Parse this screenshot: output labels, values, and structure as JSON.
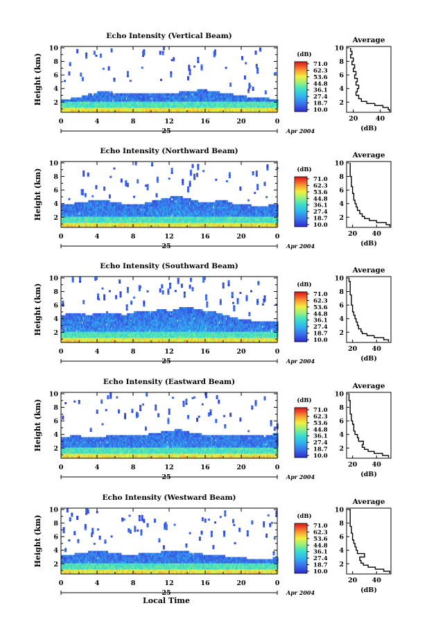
{
  "chart_data": [
    {
      "type": "heatmap",
      "title": "Echo Intensity (Vertical Beam)",
      "ylabel": "Height (km)",
      "x_ticks": [
        "0",
        "4",
        "8",
        "12",
        "16",
        "20",
        "0"
      ],
      "y_ticks": [
        "2",
        "4",
        "6",
        "8",
        "10"
      ],
      "xlim": [
        0,
        24
      ],
      "ylim": [
        0.5,
        10.2
      ],
      "day_label": "25",
      "date_label": "Apr 2004",
      "colorbar": {
        "title": "(dB)",
        "labels": [
          "71.0",
          "62.3",
          "53.6",
          "44.8",
          "36.1",
          "27.4",
          "18.7",
          "10.0"
        ],
        "range": [
          10.0,
          71.0
        ]
      },
      "cloud_top_km": [
        2.2,
        2.4,
        2.6,
        3.0,
        3.3,
        3.4,
        3.2,
        3.0,
        3.0,
        3.0,
        3.1,
        3.1,
        3.2,
        3.3,
        3.4,
        3.6,
        3.6,
        3.4,
        3.2,
        3.0,
        2.8,
        2.6,
        2.5,
        2.4,
        2.3
      ],
      "average_profile": {
        "title": "Average",
        "xlabel": "(dB)",
        "x_ticks": [
          "20",
          "40"
        ],
        "y_ticks": [
          "2",
          "4",
          "6",
          "8",
          "10"
        ],
        "xlim": [
          15,
          48
        ],
        "ylim": [
          0.5,
          10.2
        ],
        "height_km": [
          0.6,
          0.9,
          1.2,
          1.5,
          1.8,
          2.1,
          2.5,
          3.0,
          3.5,
          4.0,
          4.5,
          5.0,
          5.5,
          6.0,
          6.5,
          7.0,
          7.5,
          8.0,
          8.5,
          9.0,
          9.5,
          10.0
        ],
        "value_db": [
          47,
          46,
          42,
          36,
          30,
          26,
          24,
          22,
          23,
          24,
          22,
          23,
          21,
          22,
          20,
          21,
          19,
          20,
          18,
          19,
          18,
          18
        ]
      }
    },
    {
      "type": "heatmap",
      "title": "Echo Intensity (Northward Beam)",
      "ylabel": "Height (km)",
      "x_ticks": [
        "0",
        "4",
        "8",
        "12",
        "16",
        "20",
        "0"
      ],
      "y_ticks": [
        "2",
        "4",
        "6",
        "8",
        "10"
      ],
      "xlim": [
        0,
        24
      ],
      "ylim": [
        0.5,
        10.2
      ],
      "day_label": "25",
      "date_label": "Apr 2004",
      "colorbar": {
        "title": "(dB)",
        "labels": [
          "71.0",
          "62.3",
          "53.6",
          "44.8",
          "36.1",
          "27.4",
          "18.7",
          "10.0"
        ],
        "range": [
          10.0,
          71.0
        ]
      },
      "cloud_top_km": [
        3.6,
        3.8,
        4.0,
        4.2,
        4.4,
        4.3,
        4.0,
        3.8,
        3.8,
        3.8,
        4.2,
        4.5,
        4.8,
        4.9,
        4.6,
        4.2,
        4.0,
        4.2,
        4.4,
        3.8,
        3.6,
        3.6,
        3.5,
        3.6,
        3.8
      ],
      "average_profile": {
        "title": "Average",
        "xlabel": "(dB)",
        "x_ticks": [
          "20",
          "40"
        ],
        "y_ticks": [
          "2",
          "4",
          "6",
          "8",
          "10"
        ],
        "xlim": [
          15,
          52
        ],
        "ylim": [
          0.5,
          10.2
        ],
        "height_km": [
          0.6,
          0.9,
          1.2,
          1.5,
          1.8,
          2.1,
          2.5,
          3.0,
          3.5,
          4.0,
          4.5,
          5.0,
          5.5,
          6.0,
          6.5,
          7.0,
          7.5,
          8.0,
          8.5,
          9.0,
          9.5,
          10.0
        ],
        "value_db": [
          51,
          48,
          40,
          34,
          30,
          28,
          26,
          24,
          23,
          22,
          21,
          21,
          20,
          20,
          19,
          19,
          19,
          18,
          18,
          18,
          18,
          18
        ]
      }
    },
    {
      "type": "heatmap",
      "title": "Echo Intensity (Southward Beam)",
      "ylabel": "Height (km)",
      "x_ticks": [
        "0",
        "4",
        "8",
        "12",
        "16",
        "20",
        "0"
      ],
      "y_ticks": [
        "2",
        "4",
        "6",
        "8",
        "10"
      ],
      "xlim": [
        0,
        24
      ],
      "ylim": [
        0.5,
        10.2
      ],
      "day_label": "25",
      "date_label": "Apr 2004",
      "colorbar": {
        "title": "(dB)",
        "labels": [
          "71.0",
          "62.3",
          "53.6",
          "44.8",
          "36.1",
          "27.4",
          "18.7",
          "10.0"
        ],
        "range": [
          10.0,
          71.0
        ]
      },
      "cloud_top_km": [
        4.4,
        4.6,
        4.6,
        4.4,
        4.6,
        4.8,
        4.6,
        4.4,
        4.8,
        4.8,
        5.0,
        5.2,
        5.0,
        5.4,
        5.6,
        5.2,
        5.0,
        4.8,
        4.4,
        4.0,
        3.8,
        3.6,
        3.4,
        3.4,
        3.6
      ],
      "average_profile": {
        "title": "Average",
        "xlabel": "(dB)",
        "x_ticks": [
          "20",
          "40"
        ],
        "y_ticks": [
          "2",
          "4",
          "6",
          "8",
          "10"
        ],
        "xlim": [
          15,
          52
        ],
        "ylim": [
          0.5,
          10.2
        ],
        "height_km": [
          0.6,
          0.9,
          1.2,
          1.5,
          1.8,
          2.1,
          2.5,
          3.0,
          3.5,
          4.0,
          4.5,
          5.0,
          5.5,
          6.0,
          6.5,
          7.0,
          7.5,
          8.0,
          8.5,
          9.0,
          9.5,
          10.0
        ],
        "value_db": [
          50,
          46,
          38,
          32,
          28,
          27,
          25,
          24,
          23,
          22,
          21,
          20,
          20,
          19,
          19,
          19,
          18,
          18,
          18,
          18,
          17,
          17
        ]
      }
    },
    {
      "type": "heatmap",
      "title": "Echo Intensity (Eastward Beam)",
      "ylabel": "Height (km)",
      "x_ticks": [
        "0",
        "4",
        "8",
        "12",
        "16",
        "20",
        "0"
      ],
      "y_ticks": [
        "2",
        "4",
        "6",
        "8",
        "10"
      ],
      "xlim": [
        0,
        24
      ],
      "ylim": [
        0.5,
        10.2
      ],
      "day_label": "25",
      "date_label": "Apr 2004",
      "colorbar": {
        "title": "(dB)",
        "labels": [
          "71.0",
          "62.3",
          "53.6",
          "44.8",
          "36.1",
          "27.4",
          "18.7",
          "10.0"
        ],
        "range": [
          10.0,
          71.0
        ]
      },
      "cloud_top_km": [
        3.4,
        3.6,
        3.6,
        3.4,
        3.4,
        3.6,
        3.8,
        3.6,
        3.6,
        3.8,
        4.0,
        4.2,
        4.4,
        4.6,
        4.2,
        4.0,
        3.8,
        3.8,
        3.6,
        3.6,
        3.6,
        3.6,
        3.6,
        3.8,
        4.0
      ],
      "average_profile": {
        "title": "Average",
        "xlabel": "(dB)",
        "x_ticks": [
          "20",
          "40"
        ],
        "y_ticks": [
          "2",
          "4",
          "6",
          "8",
          "10"
        ],
        "xlim": [
          15,
          52
        ],
        "ylim": [
          0.5,
          10.2
        ],
        "height_km": [
          0.6,
          0.9,
          1.2,
          1.5,
          1.8,
          2.1,
          2.5,
          3.0,
          3.5,
          4.0,
          4.5,
          5.0,
          5.5,
          6.0,
          6.5,
          7.0,
          7.5,
          8.0,
          8.5,
          9.0,
          9.5,
          10.0
        ],
        "value_db": [
          50,
          45,
          38,
          33,
          30,
          28,
          29,
          25,
          24,
          22,
          21,
          21,
          20,
          19,
          19,
          18,
          18,
          18,
          18,
          17,
          17,
          17
        ]
      }
    },
    {
      "type": "heatmap",
      "title": "Echo Intensity (Westward Beam)",
      "ylabel": "Height (km)",
      "xlabel": "Local Time",
      "x_ticks": [
        "0",
        "4",
        "8",
        "12",
        "16",
        "20",
        "0"
      ],
      "y_ticks": [
        "2",
        "4",
        "6",
        "8",
        "10"
      ],
      "xlim": [
        0,
        24
      ],
      "ylim": [
        0.5,
        10.2
      ],
      "day_label": "25",
      "date_label": "Apr 2004",
      "colorbar": {
        "title": "(dB)",
        "labels": [
          "71.0",
          "62.3",
          "53.6",
          "44.8",
          "36.1",
          "27.4",
          "18.7",
          "10.0"
        ],
        "range": [
          10.0,
          71.0
        ]
      },
      "cloud_top_km": [
        3.0,
        3.2,
        3.4,
        3.6,
        3.8,
        3.6,
        3.4,
        3.2,
        3.2,
        3.4,
        3.4,
        3.6,
        3.6,
        3.8,
        3.6,
        3.4,
        3.2,
        3.0,
        3.0,
        2.8,
        2.8,
        2.6,
        2.6,
        2.6,
        2.8
      ],
      "average_profile": {
        "title": "Average",
        "xlabel": "(dB)",
        "x_ticks": [
          "20",
          "40"
        ],
        "y_ticks": [
          "2",
          "4",
          "6",
          "8",
          "10"
        ],
        "xlim": [
          15,
          52
        ],
        "ylim": [
          0.5,
          10.2
        ],
        "height_km": [
          0.6,
          0.9,
          1.2,
          1.5,
          1.8,
          2.1,
          2.5,
          3.0,
          3.5,
          4.0,
          4.5,
          5.0,
          5.5,
          6.0,
          6.5,
          7.0,
          7.5,
          8.0,
          8.5,
          9.0,
          9.5,
          10.0
        ],
        "value_db": [
          51,
          46,
          39,
          33,
          29,
          27,
          26,
          30,
          24,
          23,
          22,
          21,
          20,
          20,
          19,
          19,
          18,
          18,
          18,
          18,
          18,
          17
        ]
      }
    }
  ]
}
